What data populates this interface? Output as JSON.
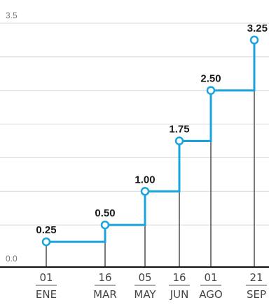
{
  "chart_data": {
    "type": "line",
    "step": true,
    "title": "",
    "xlabel": "",
    "ylabel": "",
    "ylim": [
      0.0,
      3.5
    ],
    "yticks": [
      "3.5",
      "0.0"
    ],
    "grid": true,
    "categories": [
      {
        "day": "01",
        "month": "ENE",
        "value": 0.25,
        "label": "0.25"
      },
      {
        "day": "16",
        "month": "MAR",
        "value": 0.5,
        "label": "0.50"
      },
      {
        "day": "05",
        "month": "MAY",
        "value": 1.0,
        "label": "1.00"
      },
      {
        "day": "16",
        "month": "JUN",
        "value": 1.75,
        "label": "1.75"
      },
      {
        "day": "01",
        "month": "AGO",
        "value": 2.5,
        "label": "2.50"
      },
      {
        "day": "21",
        "month": "SEP",
        "value": 3.25,
        "label": "3.25"
      }
    ],
    "colors": {
      "line": "#1aa3dd"
    }
  }
}
